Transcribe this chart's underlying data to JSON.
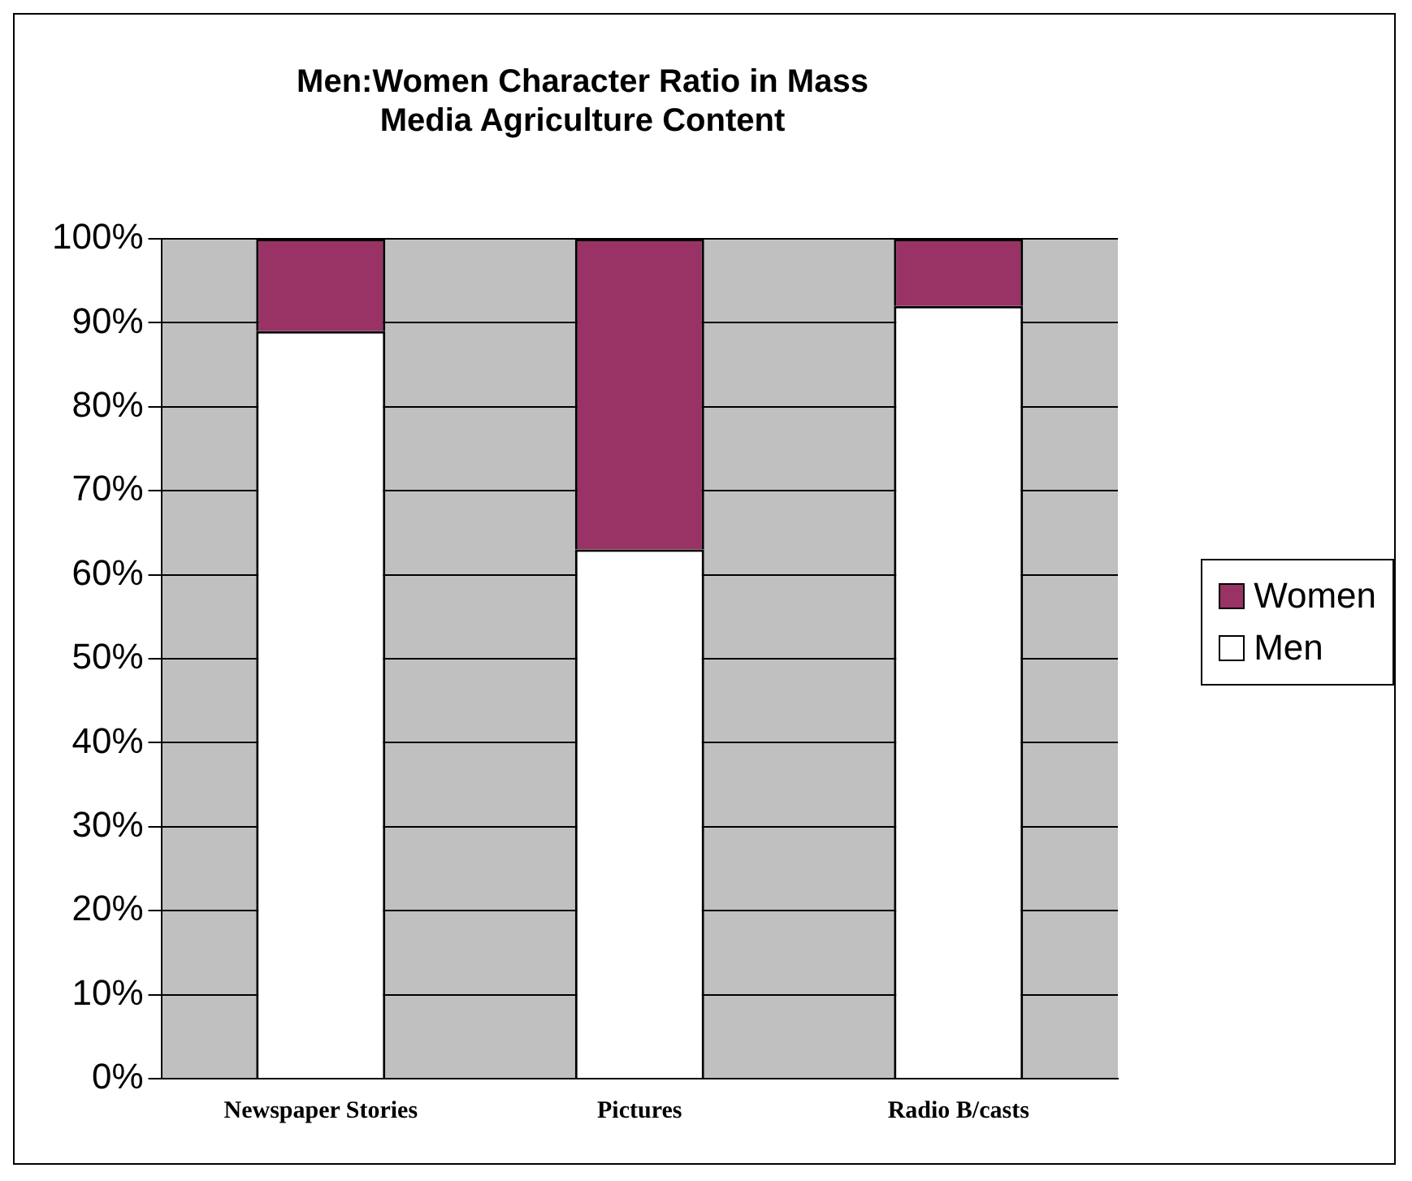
{
  "chart_data": {
    "type": "bar",
    "title": "Men:Women Character Ratio in Mass Media Agriculture Content",
    "categories": [
      "Newspaper Stories",
      "Pictures",
      "Radio B/casts"
    ],
    "stacked": true,
    "series": [
      {
        "name": "Men",
        "color": "#ffffff",
        "values": [
          89,
          63,
          92
        ]
      },
      {
        "name": "Women",
        "color": "#993366",
        "values": [
          11,
          37,
          8
        ]
      }
    ],
    "ylim": [
      0,
      100
    ],
    "yticks": [
      {
        "value": 0,
        "label": "0%"
      },
      {
        "value": 10,
        "label": "10%"
      },
      {
        "value": 20,
        "label": "20%"
      },
      {
        "value": 30,
        "label": "30%"
      },
      {
        "value": 40,
        "label": "40%"
      },
      {
        "value": 50,
        "label": "50%"
      },
      {
        "value": 60,
        "label": "60%"
      },
      {
        "value": 70,
        "label": "70%"
      },
      {
        "value": 80,
        "label": "80%"
      },
      {
        "value": 90,
        "label": "90%"
      },
      {
        "value": 100,
        "label": "100%"
      }
    ],
    "grid": "y",
    "legend": "right"
  }
}
